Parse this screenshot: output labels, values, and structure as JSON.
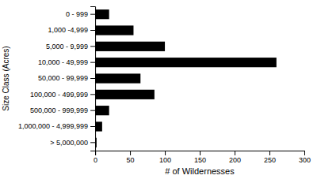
{
  "chart_data": {
    "type": "bar",
    "orientation": "horizontal",
    "categories": [
      "0 - 999",
      "1,000 -4,999",
      "5,000 - 9,999",
      "10,000 - 49,999",
      "50,000 - 99,999",
      "100,000 - 499,999",
      "500,000 - 999,999",
      "1,000,000 - 4,999,999",
      "> 5,000,000"
    ],
    "values": [
      20,
      55,
      100,
      260,
      65,
      85,
      20,
      10,
      2
    ],
    "color": "#000000",
    "xlabel": "# of Wildernesses",
    "ylabel": "Size Class (Acres)",
    "xlim": [
      0,
      300
    ],
    "xticks": [
      0,
      50,
      100,
      150,
      200,
      250,
      300
    ],
    "grid": false
  }
}
